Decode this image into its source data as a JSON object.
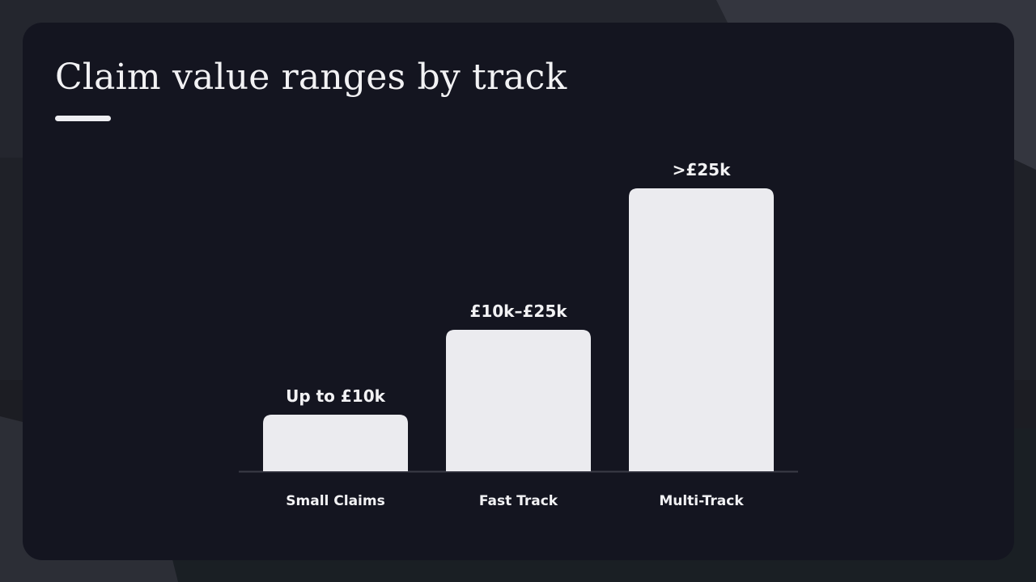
{
  "slide": {
    "title": "Claim value ranges by track"
  },
  "colors": {
    "background": "#23252d",
    "card": "#141520",
    "bar": "#ebebef",
    "text": "#f2f2f4",
    "baseline": "#3a3b46"
  },
  "chart_data": {
    "type": "bar",
    "title": "",
    "xlabel": "",
    "ylabel": "",
    "categories": [
      "Small Claims",
      "Fast Track",
      "Multi-Track"
    ],
    "values": [
      10,
      25,
      50
    ],
    "value_labels": [
      "Up to £10k",
      "£10k–£25k",
      ">£25k"
    ],
    "ylim": [
      0,
      50
    ],
    "grid": false,
    "legend": "none"
  }
}
